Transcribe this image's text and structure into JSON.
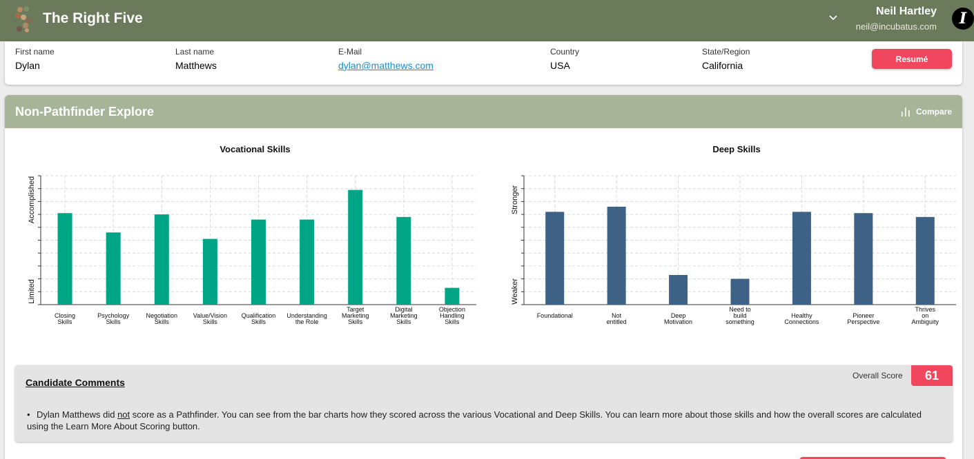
{
  "header": {
    "app_title": "The Right Five",
    "user_name": "Neil Hartley",
    "user_email": "neil@incubatus.com",
    "avatar_letter": "I"
  },
  "profile": {
    "first_name_label": "First name",
    "first_name": "Dylan",
    "last_name_label": "Last name",
    "last_name": "Matthews",
    "email_label": "E-Mail",
    "email": "dylan@matthews.com",
    "country_label": "Country",
    "country": "USA",
    "state_label": "State/Region",
    "state": "California",
    "resume_label": "Resumé"
  },
  "explore": {
    "title": "Non-Pathfinder Explore",
    "compare_label": "Compare"
  },
  "chart_data": [
    {
      "type": "bar",
      "title": "Vocational Skills",
      "ylabel_top": "Accomplished",
      "ylabel_bottom": "Limited",
      "ylim": [
        0,
        100
      ],
      "categories": [
        [
          "Closing",
          "Skills"
        ],
        [
          "Psychology",
          "Skills"
        ],
        [
          "Negotiation",
          "Skills"
        ],
        [
          "Value/Vision",
          "Skills"
        ],
        [
          "Qualification",
          "Skills"
        ],
        [
          "Understanding",
          "the Role"
        ],
        [
          "Target",
          "Marketing",
          "Skills"
        ],
        [
          "Digital",
          "Marketing",
          "Skills"
        ],
        [
          "Objection",
          "Handling",
          "Skills"
        ]
      ],
      "values": [
        71,
        56,
        70,
        51,
        66,
        66,
        89,
        68,
        13
      ],
      "color": "#00a585"
    },
    {
      "type": "bar",
      "title": "Deep Skills",
      "ylabel_top": "Stronger",
      "ylabel_bottom": "Weaker",
      "ylim": [
        0,
        100
      ],
      "categories": [
        [
          "Foundational"
        ],
        [
          "Not",
          "entitled"
        ],
        [
          "Deep",
          "Motivation"
        ],
        [
          "Need to",
          "build",
          "something"
        ],
        [
          "Healthy",
          "Connections"
        ],
        [
          "Pioneer",
          "Perspective"
        ],
        [
          "Thrives",
          "on",
          "Ambiguity"
        ]
      ],
      "values": [
        72,
        76,
        23,
        20,
        72,
        71,
        68
      ],
      "color": "#3e6186"
    }
  ],
  "comments": {
    "title": "Candidate Comments",
    "overall_score_label": "Overall Score",
    "overall_score": "61",
    "text_before": "Dylan Matthews did ",
    "text_emph": "not",
    "text_after": " score as a Pathfinder. You can see from the bar charts how they scored across the various Vocational and Deep Skills. You can learn more about those skills and how the overall scores are calculated using the Learn More About Scoring button."
  }
}
